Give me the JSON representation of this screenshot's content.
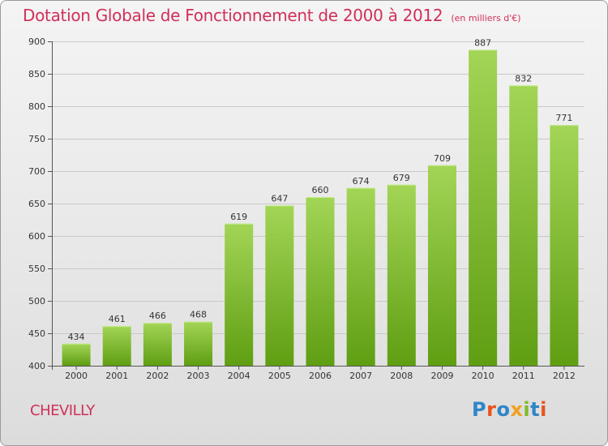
{
  "header": {
    "title": "Dotation Globale de Fonctionnement de 2000 à 2012",
    "unit": "(en milliers d'€)"
  },
  "footer": {
    "commune": "CHEVILLY",
    "logo": {
      "text": "Proxiti",
      "letter_colors": [
        "#2e86c8",
        "#e8541c",
        "#2e86c8",
        "#f0a020",
        "#7fba2a",
        "#2e86c8",
        "#e8541c"
      ]
    }
  },
  "chart_data": {
    "type": "bar",
    "title": "Dotation Globale de Fonctionnement de 2000 à 2012",
    "subtitle": "(en milliers d'€)",
    "categories": [
      "2000",
      "2001",
      "2002",
      "2003",
      "2004",
      "2005",
      "2006",
      "2007",
      "2008",
      "2009",
      "2010",
      "2011",
      "2012"
    ],
    "values": [
      434,
      461,
      466,
      468,
      619,
      647,
      660,
      674,
      679,
      709,
      887,
      832,
      771
    ],
    "ylim": [
      400,
      900
    ],
    "yticks": [
      400,
      450,
      500,
      550,
      600,
      650,
      700,
      750,
      800,
      850,
      900
    ],
    "grid": true,
    "bar_color_top": "#a3d556",
    "bar_color_bottom": "#5f9e12",
    "grid_color": "#c8c8c8"
  }
}
